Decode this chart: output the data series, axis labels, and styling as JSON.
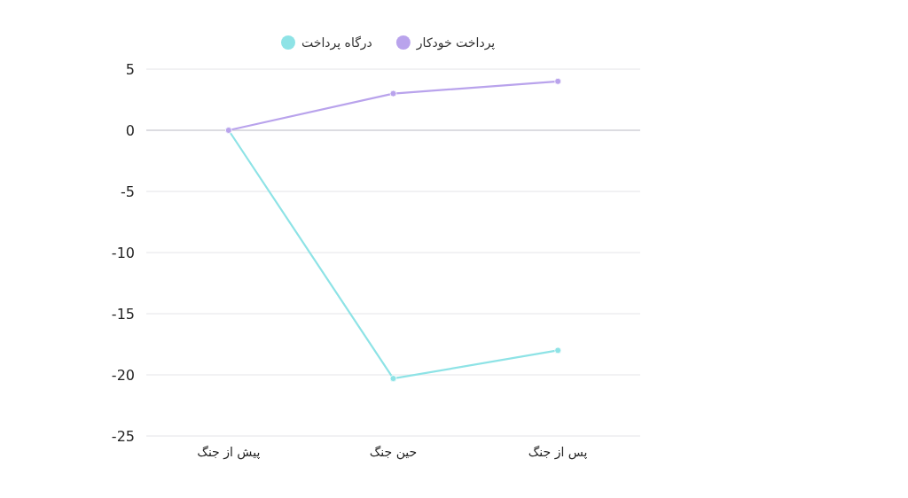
{
  "chart_data": {
    "type": "line",
    "categories": [
      "پیش از جنگ",
      "حین جنگ",
      "پس از جنگ"
    ],
    "series": [
      {
        "name": "درگاه پرداخت",
        "color": "#8ee3e6",
        "values": [
          0,
          -20.3,
          -18
        ]
      },
      {
        "name": "پرداخت خودکار",
        "color": "#b9a3ec",
        "values": [
          0,
          3,
          4
        ]
      }
    ],
    "ylim": [
      -25,
      5
    ],
    "yticks": [
      -25,
      -20,
      -15,
      -10,
      -5,
      0,
      5
    ],
    "grid": "y",
    "legend": "top",
    "marker": "circle",
    "line_style": "solid"
  }
}
